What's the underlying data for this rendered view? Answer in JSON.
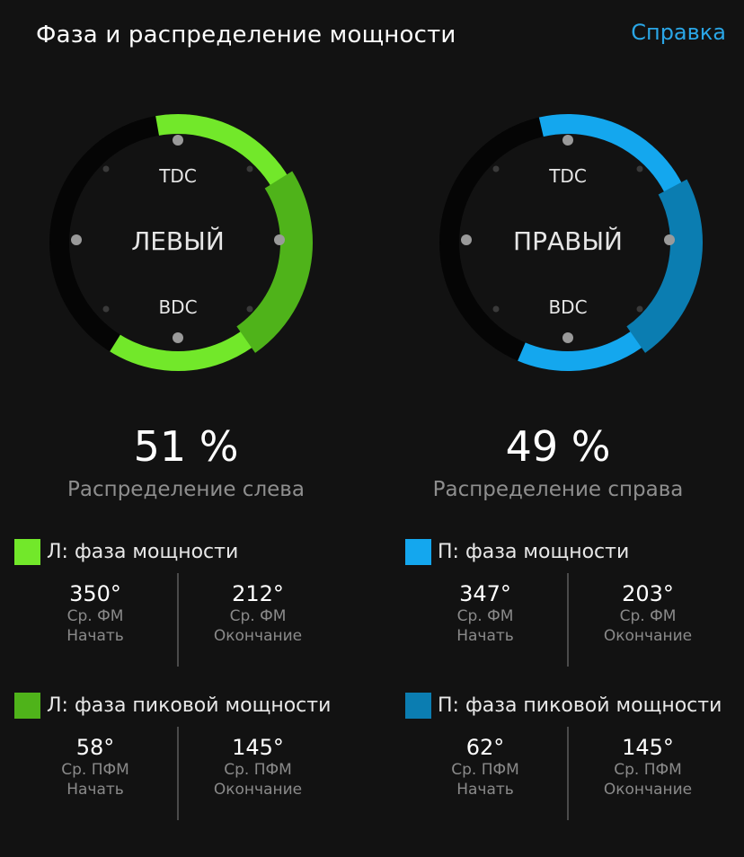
{
  "header": {
    "title": "Фаза и распределение мощности",
    "help_label": "Справка"
  },
  "colors": {
    "left_phase": "#72e82a",
    "left_peak": "#4fb31a",
    "right_phase": "#14a7ee",
    "right_peak": "#0b7db1",
    "track": "#050505",
    "dots": "#9a9a9a"
  },
  "left": {
    "dial_label": "ЛЕВЫЙ",
    "tdc": "TDC",
    "bdc": "BDC",
    "percent": "51 %",
    "distribution_label": "Распределение слева",
    "power_phase": {
      "title": "Л: фаза мощности",
      "start_value": "350°",
      "start_label1": "Ср. ФМ",
      "start_label2": "Начать",
      "end_value": "212°",
      "end_label1": "Ср. ФМ",
      "end_label2": "Окончание"
    },
    "peak_power_phase": {
      "title": "Л: фаза пиковой мощности",
      "start_value": "58°",
      "start_label1": "Ср. ПФМ",
      "start_label2": "Начать",
      "end_value": "145°",
      "end_label1": "Ср. ПФМ",
      "end_label2": "Окончание"
    }
  },
  "right": {
    "dial_label": "ПРАВЫЙ",
    "tdc": "TDC",
    "bdc": "BDC",
    "percent": "49 %",
    "distribution_label": "Распределение справа",
    "power_phase": {
      "title": "П: фаза мощности",
      "start_value": "347°",
      "start_label1": "Ср. ФМ",
      "start_label2": "Начать",
      "end_value": "203°",
      "end_label1": "Ср. ФМ",
      "end_label2": "Окончание"
    },
    "peak_power_phase": {
      "title": "П: фаза пиковой мощности",
      "start_value": "62°",
      "start_label1": "Ср. ПФМ",
      "start_label2": "Начать",
      "end_value": "145°",
      "end_label1": "Ср. ПФМ",
      "end_label2": "Окончание"
    }
  }
}
